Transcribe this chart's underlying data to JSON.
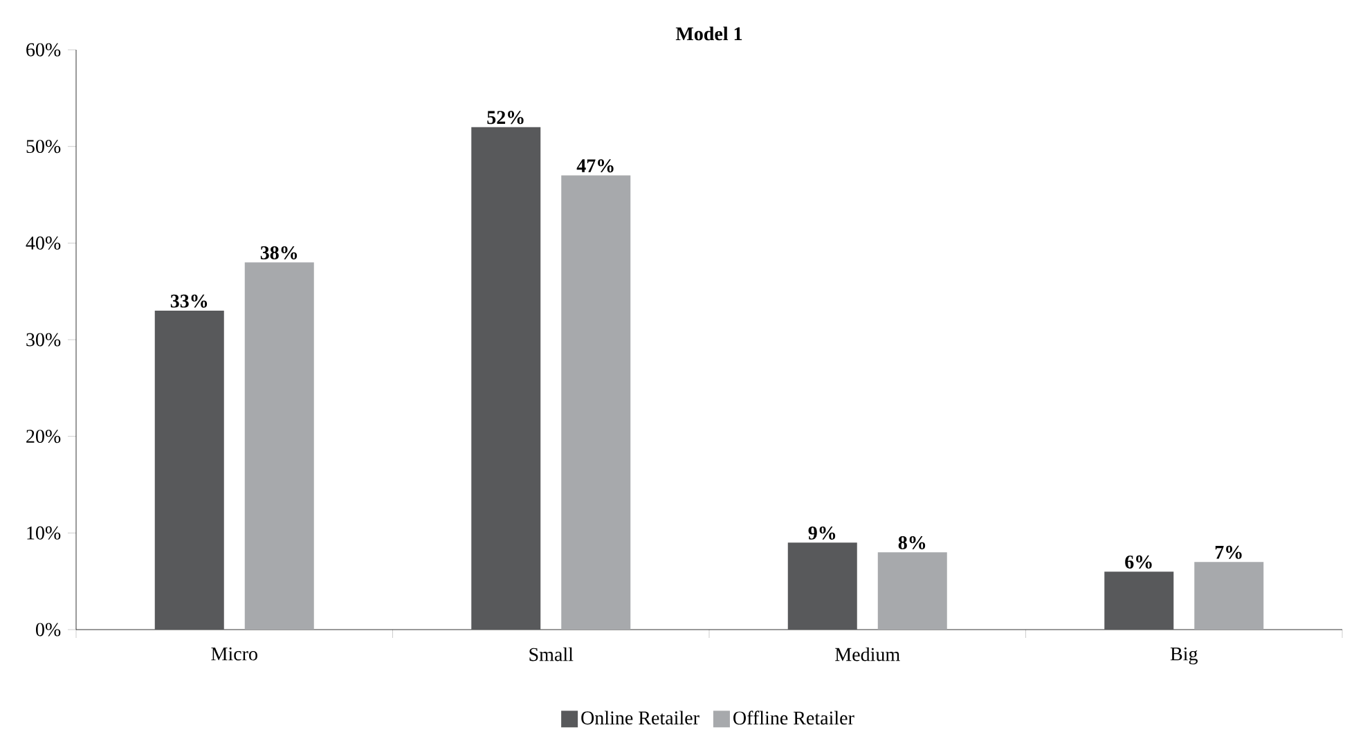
{
  "chart_data": {
    "type": "bar",
    "title": "Model 1",
    "categories": [
      "Micro",
      "Small",
      "Medium",
      "Big"
    ],
    "series": [
      {
        "name": "Online Retailer",
        "color": "#58595b",
        "values": [
          33,
          52,
          9,
          6
        ],
        "value_labels": [
          "33%",
          "52%",
          "9%",
          "6%"
        ]
      },
      {
        "name": "Offline Retailer",
        "color": "#a7a9ac",
        "values": [
          38,
          47,
          8,
          7
        ],
        "value_labels": [
          "38%",
          "47%",
          "8%",
          "7%"
        ]
      }
    ],
    "ylim": [
      0,
      60
    ],
    "yticks": [
      {
        "value": 0,
        "label": "0%"
      },
      {
        "value": 10,
        "label": "10%"
      },
      {
        "value": 20,
        "label": "20%"
      },
      {
        "value": 30,
        "label": "30%"
      },
      {
        "value": 40,
        "label": "40%"
      },
      {
        "value": 50,
        "label": "50%"
      },
      {
        "value": 60,
        "label": "60%"
      }
    ],
    "grid": false,
    "legend": "bottom"
  }
}
